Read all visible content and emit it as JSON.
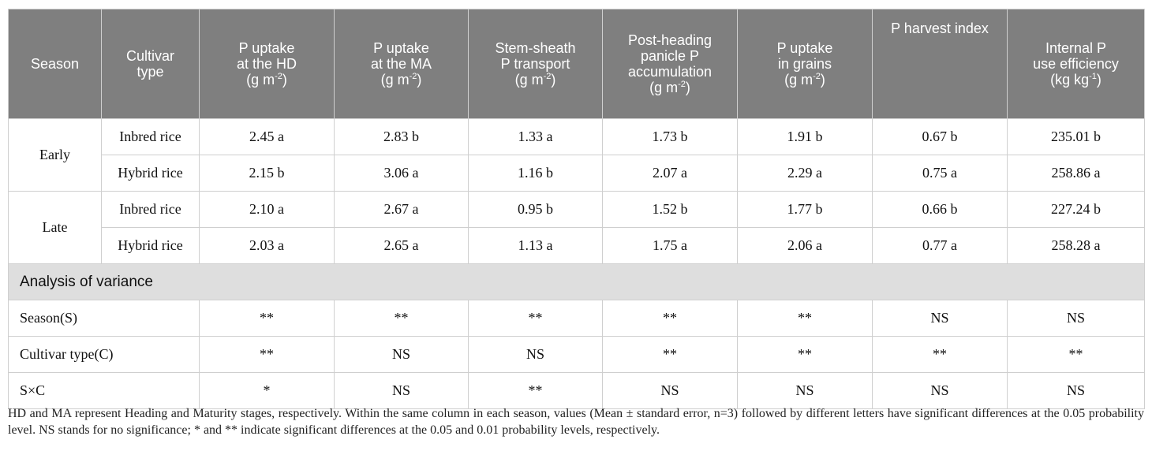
{
  "table": {
    "headers": [
      {
        "lines": [
          "Season"
        ]
      },
      {
        "lines": [
          "Cultivar",
          "type"
        ]
      },
      {
        "lines": [
          "P uptake",
          "at the HD"
        ],
        "unit_base": "(g m",
        "unit_sup": "-2",
        "unit_end": ")"
      },
      {
        "lines": [
          "P uptake",
          "at the MA"
        ],
        "unit_base": "(g m",
        "unit_sup": "-2",
        "unit_end": ")"
      },
      {
        "lines": [
          "Stem-sheath",
          "P transport"
        ],
        "unit_base": "(g m",
        "unit_sup": "-2",
        "unit_end": ")"
      },
      {
        "lines": [
          "Post-heading",
          "panicle P",
          "accumulation"
        ],
        "unit_base": "(g m",
        "unit_sup": "-2",
        "unit_end": ")"
      },
      {
        "lines": [
          "P uptake",
          "in grains"
        ],
        "unit_base": "(g m",
        "unit_sup": "-2",
        "unit_end": ")"
      },
      {
        "lines": [
          "P harvest index"
        ],
        "top": true
      },
      {
        "lines": [
          "Internal P",
          "use efficiency"
        ],
        "unit_base": "(kg kg",
        "unit_sup": "-1",
        "unit_end": ")"
      }
    ],
    "seasons": [
      {
        "name": "Early",
        "rows": [
          {
            "cultivar": "Inbred rice",
            "values": [
              "2.45 a",
              "2.83 b",
              "1.33 a",
              "1.73 b",
              "1.91 b",
              "0.67 b",
              "235.01 b"
            ]
          },
          {
            "cultivar": "Hybrid rice",
            "values": [
              "2.15 b",
              "3.06 a",
              "1.16 b",
              "2.07 a",
              "2.29 a",
              "0.75 a",
              "258.86 a"
            ]
          }
        ]
      },
      {
        "name": "Late",
        "rows": [
          {
            "cultivar": "Inbred rice",
            "values": [
              "2.10 a",
              "2.67 a",
              "0.95 b",
              "1.52 b",
              "1.77 b",
              "0.66 b",
              "227.24 b"
            ]
          },
          {
            "cultivar": "Hybrid rice",
            "values": [
              "2.03 a",
              "2.65 a",
              "1.13 a",
              "1.75 a",
              "2.06 a",
              "0.77 a",
              "258.28 a"
            ]
          }
        ]
      }
    ],
    "anova_title": "Analysis of variance",
    "anova": [
      {
        "label": "Season(S)",
        "values": [
          "**",
          "**",
          "**",
          "**",
          "**",
          "NS",
          "NS"
        ]
      },
      {
        "label": "Cultivar type(C)",
        "values": [
          "**",
          "NS",
          "NS",
          "**",
          "**",
          "**",
          "**"
        ]
      },
      {
        "label": "S×C",
        "values": [
          "*",
          "NS",
          "**",
          "NS",
          "NS",
          "NS",
          "NS"
        ]
      }
    ]
  },
  "footnote": "HD and MA represent Heading and Maturity stages, respectively. Within the same column in each season, values (Mean ± standard error, n=3) followed by different letters have significant differences at the 0.05 probability level. NS stands for no significance; * and ** indicate significant differences at the 0.05 and 0.01 probability levels, respectively."
}
